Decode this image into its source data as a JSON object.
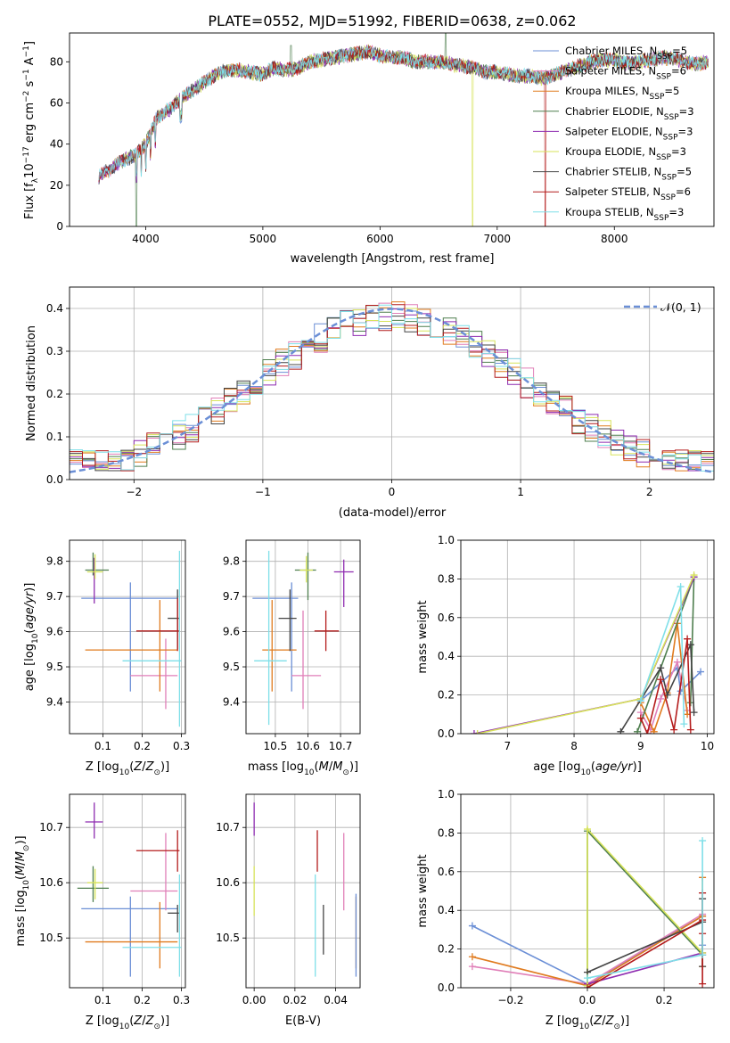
{
  "figure": {
    "title": "PLATE=0552, MJD=51992, FIBERID=0638, z=0.062"
  },
  "colors": {
    "Chabrier MILES": "#6b8fd6",
    "Salpeter MILES": "#e07fb8",
    "Kroupa MILES": "#e07b1f",
    "Chabrier ELODIE": "#4f7f4f",
    "Salpeter ELODIE": "#8e2bb0",
    "Kroupa ELODIE": "#d7e35a",
    "Chabrier STELIB": "#444444",
    "Salpeter STELIB": "#b41c1c",
    "Kroupa STELIB": "#7fdfe8",
    "normal": "#6b8fd6"
  },
  "chart_data": [
    {
      "type": "line",
      "panel": "spectrum",
      "title": "PLATE=0552, MJD=51992, FIBERID=0638, z=0.062",
      "xlabel": "wavelength [Angstrom, rest frame]",
      "ylabel": "Flux [f_λ 10^-17 erg cm^-2 s^-1 A^-1]",
      "ylabel_parts": {
        "pre": "Flux [f",
        "sub": "λ",
        "mid": "10",
        "sup1": "−17",
        "mid2": " erg cm",
        "sup2": "−2",
        "mid3": " s",
        "sup3": "−1",
        "mid4": " A",
        "sup4": "−1",
        "end": "]"
      },
      "xlim": [
        3350,
        8850
      ],
      "ylim": [
        0,
        94
      ],
      "xticks": [
        4000,
        5000,
        6000,
        7000,
        8000
      ],
      "yticks": [
        0,
        20,
        40,
        60,
        80
      ],
      "legend": [
        {
          "label": "Chabrier MILES, N",
          "sub": "SSP",
          "eq": "=5"
        },
        {
          "label": "Salpeter MILES, N",
          "sub": "SSP",
          "eq": "=6"
        },
        {
          "label": "Kroupa MILES, N",
          "sub": "SSP",
          "eq": "=5"
        },
        {
          "label": "Chabrier ELODIE, N",
          "sub": "SSP",
          "eq": "=3"
        },
        {
          "label": "Salpeter ELODIE, N",
          "sub": "SSP",
          "eq": "=3"
        },
        {
          "label": "Kroupa ELODIE, N",
          "sub": "SSP",
          "eq": "=3"
        },
        {
          "label": "Chabrier STELIB, N",
          "sub": "SSP",
          "eq": "=5"
        },
        {
          "label": "Salpeter STELIB, N",
          "sub": "SSP",
          "eq": "=6"
        },
        {
          "label": "Kroupa STELIB, N",
          "sub": "SSP",
          "eq": "=3"
        }
      ],
      "legend_location": "upper right",
      "data_trend": {
        "x": [
          3600,
          3700,
          3800,
          3900,
          4000,
          4100,
          4200,
          4300,
          4400,
          4500,
          4600,
          4700,
          4800,
          4900,
          5000,
          5100,
          5200,
          5300,
          5400,
          5500,
          5600,
          5700,
          5800,
          5900,
          6000,
          6100,
          6200,
          6300,
          6400,
          6500,
          6600,
          6700,
          6800,
          6900,
          7000,
          7100,
          7200,
          7300,
          7400,
          7500,
          7600,
          7700,
          7800,
          7900,
          8000,
          8100,
          8200,
          8300,
          8400,
          8500,
          8600,
          8700,
          8800
        ],
        "y": [
          24,
          28,
          32,
          34,
          40,
          53,
          57,
          62,
          66,
          70,
          74,
          76,
          76,
          75,
          74,
          77,
          76,
          77,
          80,
          81,
          82,
          83,
          84,
          85,
          83,
          82,
          82,
          80,
          80,
          80,
          79,
          78,
          77,
          75,
          75,
          74,
          73,
          73,
          72,
          74,
          76,
          78,
          80,
          81,
          81,
          79,
          80,
          81,
          82,
          82,
          80,
          79,
          80
        ]
      },
      "drops_x": [
        3920,
        6790,
        7410
      ],
      "peak_x": [
        5240,
        6560
      ]
    },
    {
      "type": "bar",
      "panel": "residual histogram",
      "xlabel": "(data-model)/error",
      "ylabel": "Normed distribution",
      "xlim": [
        -2.5,
        2.5
      ],
      "ylim": [
        0,
        0.45
      ],
      "xticks": [
        -2,
        -1,
        0,
        1,
        2
      ],
      "yticks": [
        0.0,
        0.1,
        0.2,
        0.3,
        0.4
      ],
      "reference_curve": {
        "name": "𝒩(0, 1)",
        "mean": 0,
        "sigma": 1
      }
    },
    {
      "type": "scatter",
      "panel": "age vs Z",
      "xlabel": "Z [log10(Z/Z⊙)]",
      "ylabel": "age  [log10(age/yr)]",
      "xlim": [
        0.015,
        0.31
      ],
      "ylim": [
        9.31,
        9.86
      ],
      "xticks": [
        0.1,
        0.2,
        0.3
      ],
      "yticks": [
        9.4,
        9.5,
        9.6,
        9.7,
        9.8
      ],
      "points": [
        {
          "model": "Chabrier MILES",
          "x": 0.17,
          "y": 9.695,
          "xerr": [
            0.045,
            0.29
          ],
          "yerr": [
            9.43,
            9.74
          ]
        },
        {
          "model": "Salpeter MILES",
          "x": 0.26,
          "y": 9.475,
          "xerr": [
            0.17,
            0.29
          ],
          "yerr": [
            9.38,
            9.58
          ]
        },
        {
          "model": "Kroupa MILES",
          "x": 0.245,
          "y": 9.548,
          "xerr": [
            0.055,
            0.29
          ],
          "yerr": [
            9.43,
            9.69
          ]
        },
        {
          "model": "Chabrier ELODIE",
          "x": 0.075,
          "y": 9.775,
          "xerr": [
            0.055,
            0.115
          ],
          "yerr": [
            9.76,
            9.825
          ]
        },
        {
          "model": "Salpeter ELODIE",
          "x": 0.078,
          "y": 9.77,
          "xerr": [
            0.075,
            0.08
          ],
          "yerr": [
            9.68,
            9.81
          ]
        },
        {
          "model": "Kroupa ELODIE",
          "x": 0.08,
          "y": 9.77,
          "xerr": [
            0.06,
            0.1
          ],
          "yerr": [
            9.75,
            9.82
          ]
        },
        {
          "model": "Chabrier STELIB",
          "x": 0.29,
          "y": 9.638,
          "xerr": [
            0.265,
            0.295
          ],
          "yerr": [
            9.55,
            9.72
          ]
        },
        {
          "model": "Salpeter STELIB",
          "x": 0.29,
          "y": 9.602,
          "xerr": [
            0.185,
            0.295
          ],
          "yerr": [
            9.545,
            9.695
          ]
        },
        {
          "model": "Kroupa STELIB",
          "x": 0.295,
          "y": 9.517,
          "xerr": [
            0.15,
            0.3
          ],
          "yerr": [
            9.33,
            9.83
          ]
        }
      ]
    },
    {
      "type": "scatter",
      "panel": "age vs mass",
      "xlabel": "mass [log10(M/M⊙)]",
      "ylabel": "",
      "xlim": [
        10.41,
        10.76
      ],
      "ylim": [
        9.31,
        9.86
      ],
      "xticks": [
        10.5,
        10.6,
        10.7
      ],
      "yticks": [
        9.4,
        9.5,
        9.6,
        9.7,
        9.8
      ],
      "points": [
        {
          "model": "Chabrier MILES",
          "x": 10.55,
          "y": 9.695,
          "xerr": [
            10.43,
            10.57
          ],
          "yerr": [
            9.43,
            9.74
          ]
        },
        {
          "model": "Salpeter MILES",
          "x": 10.585,
          "y": 9.475,
          "xerr": [
            10.55,
            10.64
          ],
          "yerr": [
            9.38,
            9.66
          ]
        },
        {
          "model": "Kroupa MILES",
          "x": 10.49,
          "y": 9.548,
          "xerr": [
            10.46,
            10.565
          ],
          "yerr": [
            9.43,
            9.69
          ]
        },
        {
          "model": "Chabrier ELODIE",
          "x": 10.6,
          "y": 9.775,
          "xerr": [
            10.56,
            10.625
          ],
          "yerr": [
            9.69,
            9.825
          ]
        },
        {
          "model": "Salpeter ELODIE",
          "x": 10.71,
          "y": 9.77,
          "xerr": [
            10.68,
            10.74
          ],
          "yerr": [
            9.67,
            9.805
          ]
        },
        {
          "model": "Kroupa ELODIE",
          "x": 10.595,
          "y": 9.775,
          "xerr": [
            10.575,
            10.615
          ],
          "yerr": [
            9.74,
            9.815
          ]
        },
        {
          "model": "Chabrier STELIB",
          "x": 10.545,
          "y": 9.638,
          "xerr": [
            10.51,
            10.565
          ],
          "yerr": [
            9.545,
            9.72
          ]
        },
        {
          "model": "Salpeter STELIB",
          "x": 10.655,
          "y": 9.602,
          "xerr": [
            10.62,
            10.695
          ],
          "yerr": [
            9.545,
            9.66
          ]
        },
        {
          "model": "Kroupa STELIB",
          "x": 10.48,
          "y": 9.517,
          "xerr": [
            10.435,
            10.535
          ],
          "yerr": [
            9.335,
            9.83
          ]
        }
      ]
    },
    {
      "type": "line",
      "panel": "mass weight vs age",
      "xlabel": "age  [log10(age/yr)]",
      "ylabel": "mass weight",
      "xlim": [
        6.3,
        10.1
      ],
      "ylim": [
        0,
        1
      ],
      "xticks": [
        7,
        8,
        9,
        10
      ],
      "yticks": [
        0.0,
        0.2,
        0.4,
        0.6,
        0.8,
        1.0
      ],
      "series": [
        {
          "name": "Chabrier MILES",
          "x": [
            9.0,
            9.55,
            9.6,
            9.9
          ],
          "y": [
            0.17,
            0.34,
            0.22,
            0.32
          ]
        },
        {
          "name": "Salpeter MILES",
          "x": [
            9.0,
            9.15,
            9.3,
            9.55,
            9.7
          ],
          "y": [
            0.11,
            0.02,
            0.18,
            0.37,
            0.12
          ]
        },
        {
          "name": "Kroupa MILES",
          "x": [
            9.0,
            9.2,
            9.4,
            9.55,
            9.7
          ],
          "y": [
            0.16,
            0.01,
            0.21,
            0.57,
            0.1
          ]
        },
        {
          "name": "Chabrier ELODIE",
          "x": [
            8.95,
            9.8,
            9.75
          ],
          "y": [
            0.01,
            0.81,
            0.16
          ]
        },
        {
          "name": "Salpeter ELODIE",
          "x": [
            6.5,
            9.0,
            9.8
          ],
          "y": [
            0.0,
            0.18,
            0.81
          ]
        },
        {
          "name": "Kroupa ELODIE",
          "x": [
            6.55,
            9.0,
            9.8
          ],
          "y": [
            0.0,
            0.18,
            0.82
          ]
        },
        {
          "name": "Chabrier STELIB",
          "x": [
            8.7,
            9.3,
            9.4,
            9.75,
            9.8
          ],
          "y": [
            0.01,
            0.34,
            0.2,
            0.46,
            0.11
          ]
        },
        {
          "name": "Salpeter STELIB",
          "x": [
            9.0,
            9.1,
            9.3,
            9.5,
            9.7,
            9.75
          ],
          "y": [
            0.08,
            0.0,
            0.28,
            0.02,
            0.49,
            0.02
          ]
        },
        {
          "name": "Kroupa STELIB",
          "x": [
            9.0,
            9.6,
            9.65
          ],
          "y": [
            0.17,
            0.76,
            0.05
          ]
        }
      ]
    },
    {
      "type": "scatter",
      "panel": "mass vs Z",
      "xlabel": "Z [log10(Z/Z⊙)]",
      "ylabel": "mass [log10(M/M⊙)]",
      "xlim": [
        0.015,
        0.31
      ],
      "ylim": [
        10.41,
        10.76
      ],
      "xticks": [
        0.1,
        0.2,
        0.3
      ],
      "yticks": [
        10.5,
        10.6,
        10.7
      ],
      "points": [
        {
          "model": "Chabrier MILES",
          "x": 0.17,
          "y": 10.553,
          "xerr": [
            0.045,
            0.29
          ],
          "yerr": [
            10.43,
            10.575
          ]
        },
        {
          "model": "Salpeter MILES",
          "x": 0.26,
          "y": 10.585,
          "xerr": [
            0.17,
            0.29
          ],
          "yerr": [
            10.55,
            10.69
          ]
        },
        {
          "model": "Kroupa MILES",
          "x": 0.245,
          "y": 10.493,
          "xerr": [
            0.055,
            0.29
          ],
          "yerr": [
            10.445,
            10.565
          ]
        },
        {
          "model": "Chabrier ELODIE",
          "x": 0.075,
          "y": 10.59,
          "xerr": [
            0.035,
            0.115
          ],
          "yerr": [
            10.565,
            10.63
          ]
        },
        {
          "model": "Salpeter ELODIE",
          "x": 0.078,
          "y": 10.71,
          "xerr": [
            0.055,
            0.1
          ],
          "yerr": [
            10.68,
            10.745
          ]
        },
        {
          "model": "Kroupa ELODIE",
          "x": 0.08,
          "y": 10.6,
          "xerr": [
            0.06,
            0.1
          ],
          "yerr": [
            10.57,
            10.625
          ]
        },
        {
          "model": "Chabrier STELIB",
          "x": 0.29,
          "y": 10.545,
          "xerr": [
            0.265,
            0.295
          ],
          "yerr": [
            10.51,
            10.56
          ]
        },
        {
          "model": "Salpeter STELIB",
          "x": 0.29,
          "y": 10.658,
          "xerr": [
            0.185,
            0.295
          ],
          "yerr": [
            10.62,
            10.695
          ]
        },
        {
          "model": "Kroupa STELIB",
          "x": 0.295,
          "y": 10.483,
          "xerr": [
            0.15,
            0.3
          ],
          "yerr": [
            10.43,
            10.615
          ]
        }
      ]
    },
    {
      "type": "scatter",
      "panel": "mass vs E(B-V)",
      "xlabel": "E(B-V)",
      "ylabel": "",
      "xlim": [
        -0.004,
        0.052
      ],
      "ylim": [
        10.41,
        10.76
      ],
      "xticks": [
        0.0,
        0.02,
        0.04
      ],
      "yticks": [
        10.5,
        10.6,
        10.7
      ],
      "points": [
        {
          "model": "Salpeter ELODIE",
          "x": 0.0,
          "yerr": [
            10.685,
            10.745
          ]
        },
        {
          "model": "Kroupa ELODIE",
          "x": 0.0,
          "yerr": [
            10.54,
            10.63
          ]
        },
        {
          "model": "Kroupa STELIB",
          "x": 0.03,
          "yerr": [
            10.43,
            10.615
          ]
        },
        {
          "model": "Salpeter STELIB",
          "x": 0.031,
          "yerr": [
            10.62,
            10.695
          ]
        },
        {
          "model": "Chabrier STELIB",
          "x": 0.034,
          "yerr": [
            10.47,
            10.56
          ]
        },
        {
          "model": "Salpeter MILES",
          "x": 0.044,
          "yerr": [
            10.55,
            10.69
          ]
        },
        {
          "model": "Kroupa MILES",
          "x": 0.05,
          "yerr": [
            10.445,
            10.575
          ]
        },
        {
          "model": "Chabrier MILES",
          "x": 0.05,
          "yerr": [
            10.43,
            10.58
          ]
        }
      ]
    },
    {
      "type": "line",
      "panel": "mass weight vs Z",
      "xlabel": "Z [log10(Z/Z⊙)]",
      "ylabel": "mass weight",
      "xlim": [
        -0.33,
        0.33
      ],
      "ylim": [
        0,
        1
      ],
      "xticks": [
        -0.2,
        0.0,
        0.2
      ],
      "yticks": [
        0.0,
        0.2,
        0.4,
        0.6,
        0.8,
        1.0
      ],
      "series": [
        {
          "name": "Chabrier MILES",
          "x": [
            -0.3,
            0.0,
            0.3,
            0.3,
            0.3
          ],
          "y": [
            0.32,
            0.02,
            0.37,
            0.22,
            0.17
          ]
        },
        {
          "name": "Salpeter MILES",
          "x": [
            -0.3,
            0.0,
            0.3
          ],
          "y": [
            0.11,
            0.02,
            0.38
          ]
        },
        {
          "name": "Kroupa MILES",
          "x": [
            -0.3,
            0.0,
            0.3,
            0.3,
            0.3
          ],
          "y": [
            0.16,
            0.01,
            0.37,
            0.57,
            0.11
          ]
        },
        {
          "name": "Chabrier ELODIE",
          "x": [
            0.0,
            0.0,
            0.3
          ],
          "y": [
            0.01,
            0.81,
            0.17
          ]
        },
        {
          "name": "Salpeter ELODIE",
          "x": [
            0.0,
            0.3
          ],
          "y": [
            0.02,
            0.18
          ]
        },
        {
          "name": "Kroupa ELODIE",
          "x": [
            0.0,
            0.0,
            0.3
          ],
          "y": [
            0.01,
            0.82,
            0.18
          ]
        },
        {
          "name": "Chabrier STELIB",
          "x": [
            0.0,
            0.3,
            0.3,
            0.3
          ],
          "y": [
            0.08,
            0.34,
            0.46,
            0.11
          ]
        },
        {
          "name": "Salpeter STELIB",
          "x": [
            0.0,
            0.3,
            0.3,
            0.3,
            0.3
          ],
          "y": [
            0.0,
            0.35,
            0.49,
            0.28,
            0.02
          ]
        },
        {
          "name": "Kroupa STELIB",
          "x": [
            0.0,
            0.3,
            0.3
          ],
          "y": [
            0.05,
            0.17,
            0.76
          ]
        }
      ]
    }
  ]
}
